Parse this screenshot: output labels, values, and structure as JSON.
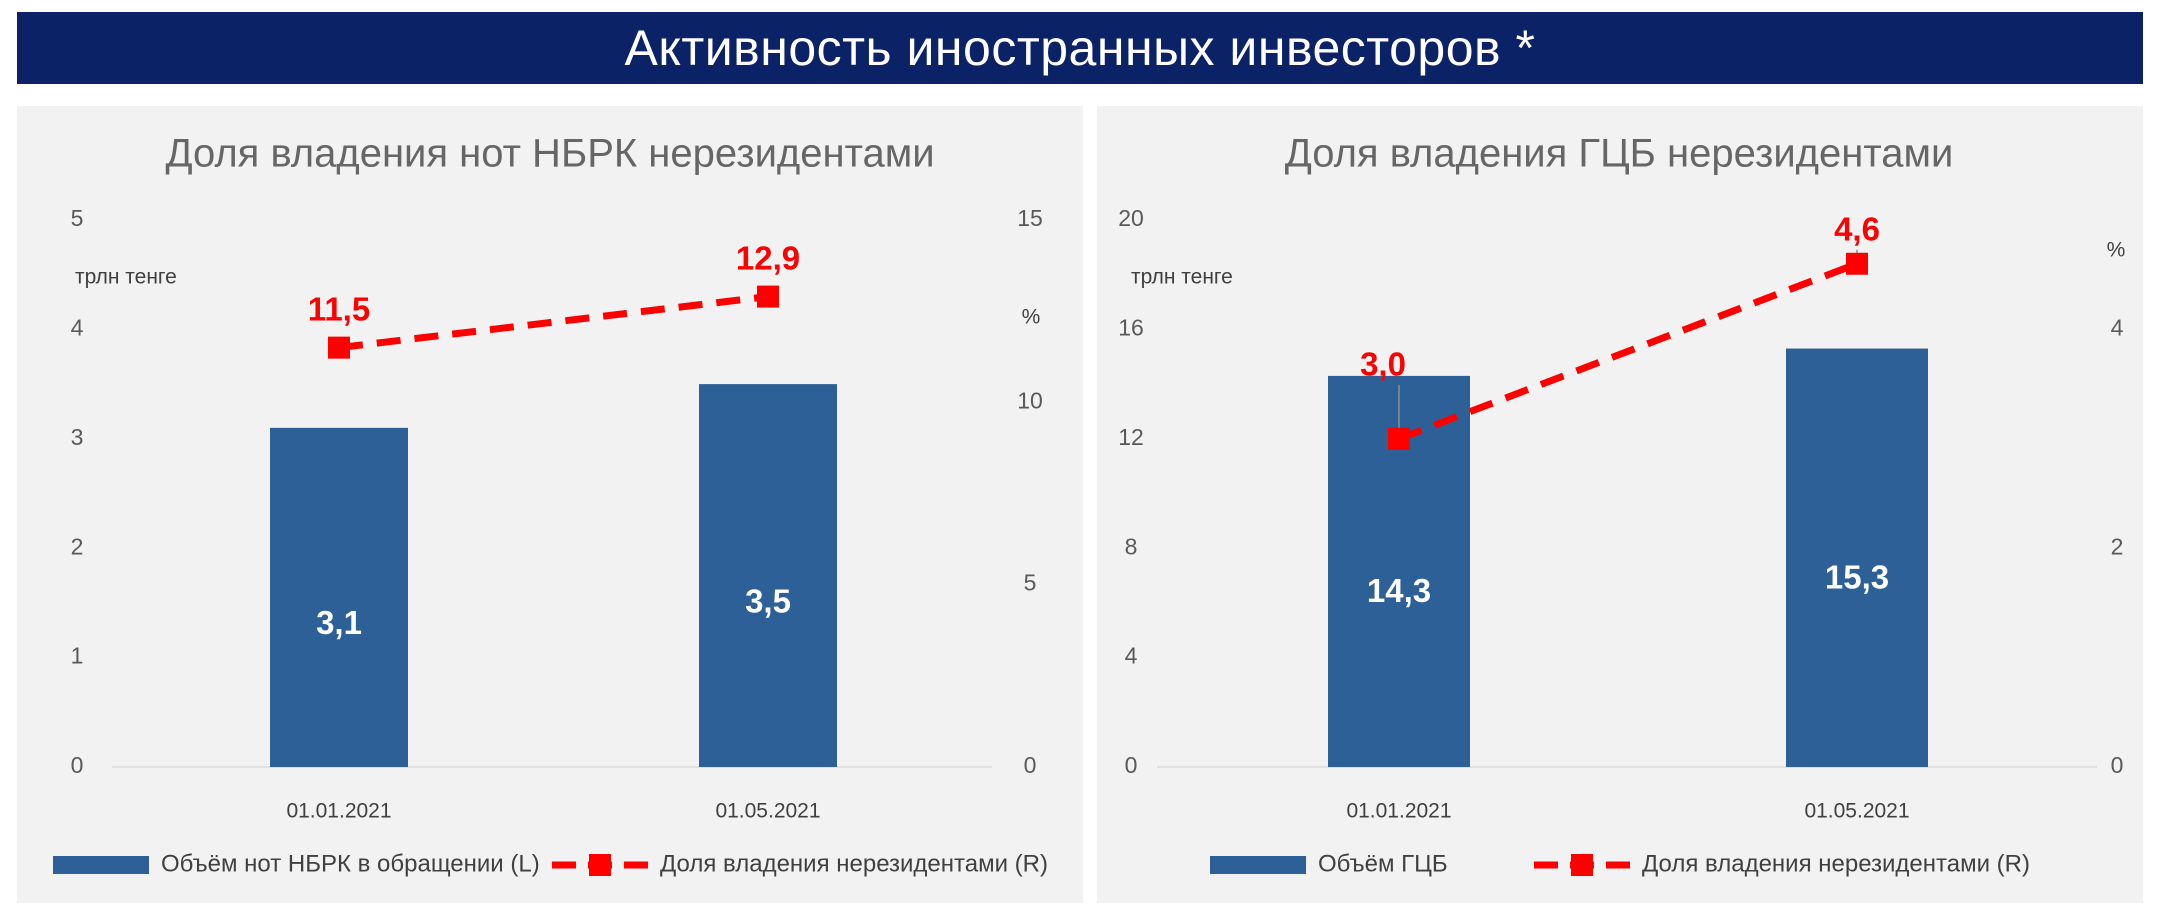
{
  "header": {
    "title": "Активность иностранных инвесторов *"
  },
  "chart_data": [
    {
      "type": "bar",
      "title": "Доля владения нот НБРК нерезидентами",
      "categories": [
        "01.01.2021",
        "01.05.2021"
      ],
      "left_axis": {
        "unit": "трлн тенге",
        "min": 0,
        "max": 5,
        "ticks": [
          "0",
          "1",
          "2",
          "3",
          "4",
          "5"
        ]
      },
      "right_axis": {
        "unit": "%",
        "min": 0,
        "max": 15,
        "ticks": [
          "0",
          "5",
          "10",
          "15"
        ]
      },
      "series": [
        {
          "name": "Объём нот НБРК в обращении (L)",
          "kind": "bar",
          "axis": "left",
          "color": "#2c6096",
          "values": [
            3.1,
            3.5
          ],
          "labels": [
            "3,1",
            "3,5"
          ]
        },
        {
          "name": "Доля владения нерезидентами (R)",
          "kind": "line",
          "axis": "right",
          "color": "#ff0000",
          "style": "dashed",
          "values": [
            11.5,
            12.9
          ],
          "labels": [
            "11,5",
            "12,9"
          ]
        }
      ],
      "grid": false,
      "legend_position": "bottom"
    },
    {
      "type": "bar",
      "title": "Доля владения ГЦБ нерезидентами",
      "categories": [
        "01.01.2021",
        "01.05.2021"
      ],
      "left_axis": {
        "unit": "трлн тенге",
        "min": 0,
        "max": 20,
        "ticks": [
          "0",
          "4",
          "8",
          "12",
          "16",
          "20"
        ]
      },
      "right_axis": {
        "unit": "%",
        "min": 0,
        "max": 5,
        "ticks": [
          "0",
          "2",
          "4"
        ]
      },
      "series": [
        {
          "name": "Объём ГЦБ",
          "kind": "bar",
          "axis": "left",
          "color": "#2c6096",
          "values": [
            14.3,
            15.3
          ],
          "labels": [
            "14,3",
            "15,3"
          ]
        },
        {
          "name": "Доля владения нерезидентами (R)",
          "kind": "line",
          "axis": "right",
          "color": "#ff0000",
          "style": "dashed",
          "values": [
            3.0,
            4.6
          ],
          "labels": [
            "3,0",
            "4,6"
          ]
        }
      ],
      "grid": false,
      "legend_position": "bottom"
    }
  ]
}
